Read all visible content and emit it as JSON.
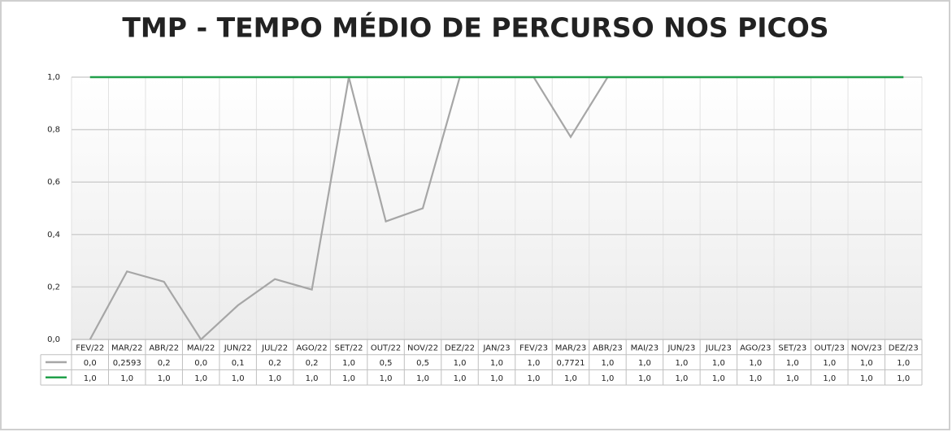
{
  "chart_data": {
    "type": "line",
    "title": "TMP - TEMPO MÉDIO DE PERCURSO NOS PICOS",
    "categories": [
      "FEV/22",
      "MAR/22",
      "ABR/22",
      "MAI/22",
      "JUN/22",
      "JUL/22",
      "AGO/22",
      "SET/22",
      "OUT/22",
      "NOV/22",
      "DEZ/22",
      "JAN/23",
      "FEV/23",
      "MAR/23",
      "ABR/23",
      "MAI/23",
      "JUN/23",
      "JUL/23",
      "AGO/23",
      "SET/23",
      "OUT/23",
      "NOV/23",
      "DEZ/23"
    ],
    "series": [
      {
        "color": "#a6a6a6",
        "values": [
          0,
          0.2593,
          0.22,
          0,
          0.13,
          0.23,
          0.19,
          1,
          0.45,
          0.5,
          1,
          1,
          1,
          0.7721,
          1,
          1,
          1,
          1,
          1,
          1,
          1,
          1,
          1
        ],
        "value_labels": [
          "0,0",
          "0,2593",
          "0,2",
          "0,0",
          "0,1",
          "0,2",
          "0,2",
          "1,0",
          "0,5",
          "0,5",
          "1,0",
          "1,0",
          "1,0",
          "0,7721",
          "1,0",
          "1,0",
          "1,0",
          "1,0",
          "1,0",
          "1,0",
          "1,0",
          "1,0",
          "1,0"
        ]
      },
      {
        "color": "#21a04a",
        "values": [
          1,
          1,
          1,
          1,
          1,
          1,
          1,
          1,
          1,
          1,
          1,
          1,
          1,
          1,
          1,
          1,
          1,
          1,
          1,
          1,
          1,
          1,
          1
        ],
        "value_labels": [
          "1,0",
          "1,0",
          "1,0",
          "1,0",
          "1,0",
          "1,0",
          "1,0",
          "1,0",
          "1,0",
          "1,0",
          "1,0",
          "1,0",
          "1,0",
          "1,0",
          "1,0",
          "1,0",
          "1,0",
          "1,0",
          "1,0",
          "1,0",
          "1,0",
          "1,0",
          "1,0"
        ]
      }
    ],
    "ylim": [
      0,
      1
    ],
    "yticks": [
      {
        "value": 0,
        "label": "0,0"
      },
      {
        "value": 0.2,
        "label": "0,2"
      },
      {
        "value": 0.4,
        "label": "0,4"
      },
      {
        "value": 0.6,
        "label": "0,6"
      },
      {
        "value": 0.8,
        "label": "0,8"
      },
      {
        "value": 1,
        "label": "1,0"
      }
    ],
    "grid": true
  }
}
